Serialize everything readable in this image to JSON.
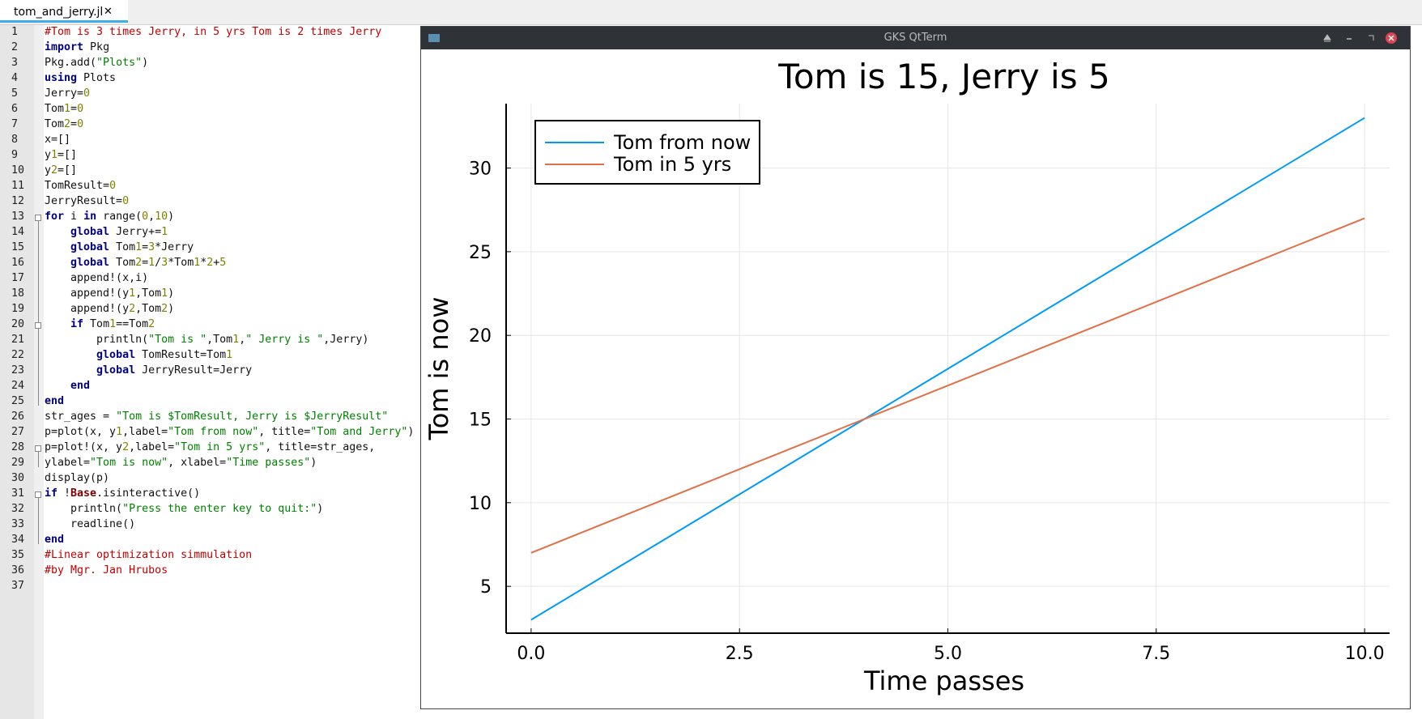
{
  "editor": {
    "tab": "tom_and_jerry.jl",
    "line_numbers": [
      1,
      2,
      3,
      4,
      5,
      6,
      7,
      8,
      9,
      10,
      11,
      12,
      13,
      14,
      15,
      16,
      17,
      18,
      19,
      20,
      21,
      22,
      23,
      24,
      25,
      26,
      27,
      28,
      29,
      30,
      31,
      32,
      33,
      34,
      35,
      36,
      37
    ],
    "lines": [
      "#Tom is 3 times Jerry, in 5 yrs Tom is 2 times Jerry",
      "import Pkg",
      "Pkg.add(\"Plots\")",
      "using Plots",
      "Jerry=0",
      "Tom1=0",
      "Tom2=0",
      "x=[]",
      "y1=[]",
      "y2=[]",
      "TomResult=0",
      "JerryResult=0",
      "for i in range(0,10)",
      "    global Jerry+=1",
      "    global Tom1=3*Jerry",
      "    global Tom2=1/3*Tom1*2+5",
      "    append!(x,i)",
      "    append!(y1,Tom1)",
      "    append!(y2,Tom2)",
      "    if Tom1==Tom2",
      "        println(\"Tom is \",Tom1,\" Jerry is \",Jerry)",
      "        global TomResult=Tom1",
      "        global JerryResult=Jerry",
      "    end",
      "end",
      "str_ages = \"Tom is $TomResult, Jerry is $JerryResult\"",
      "p=plot(x, y1,label=\"Tom from now\", title=\"Tom and Jerry\")",
      "p=plot!(x, y2,label=\"Tom in 5 yrs\", title=str_ages,",
      "ylabel=\"Tom is now\", xlabel=\"Time passes\")",
      "display(p)",
      "if !Base.isinteractive()",
      "    println(\"Press the enter key to quit:\")",
      "    readline()",
      "end",
      "#Linear optimization simmulation",
      "#by Mgr. Jan Hrubos",
      ""
    ]
  },
  "window": {
    "title": "GKS QtTerm"
  },
  "chart_data": {
    "type": "line",
    "title": "Tom is 15, Jerry is 5",
    "xlabel": "Time passes",
    "ylabel": "Tom is now",
    "x": [
      0,
      1,
      2,
      3,
      4,
      5,
      6,
      7,
      8,
      9,
      10
    ],
    "series": [
      {
        "name": "Tom from now",
        "color": "#009af9",
        "values": [
          3,
          6,
          9,
          12,
          15,
          18,
          21,
          24,
          27,
          30,
          33
        ]
      },
      {
        "name": "Tom in 5 yrs",
        "color": "#e26f46",
        "values": [
          7,
          9,
          11,
          13,
          15,
          17,
          19,
          21,
          23,
          25,
          27
        ]
      }
    ],
    "xlim": [
      -0.3,
      10.3
    ],
    "xticks": [
      {
        "value": 0,
        "label": "0.0"
      },
      2.5,
      {
        "value": 5,
        "label": "5.0"
      },
      7.5,
      {
        "value": 10,
        "label": "10.0"
      }
    ],
    "ylim": [
      2.2,
      33.85
    ],
    "yticks": [
      5,
      10,
      15,
      20,
      25,
      30
    ],
    "grid": true,
    "legend": "upper left"
  }
}
